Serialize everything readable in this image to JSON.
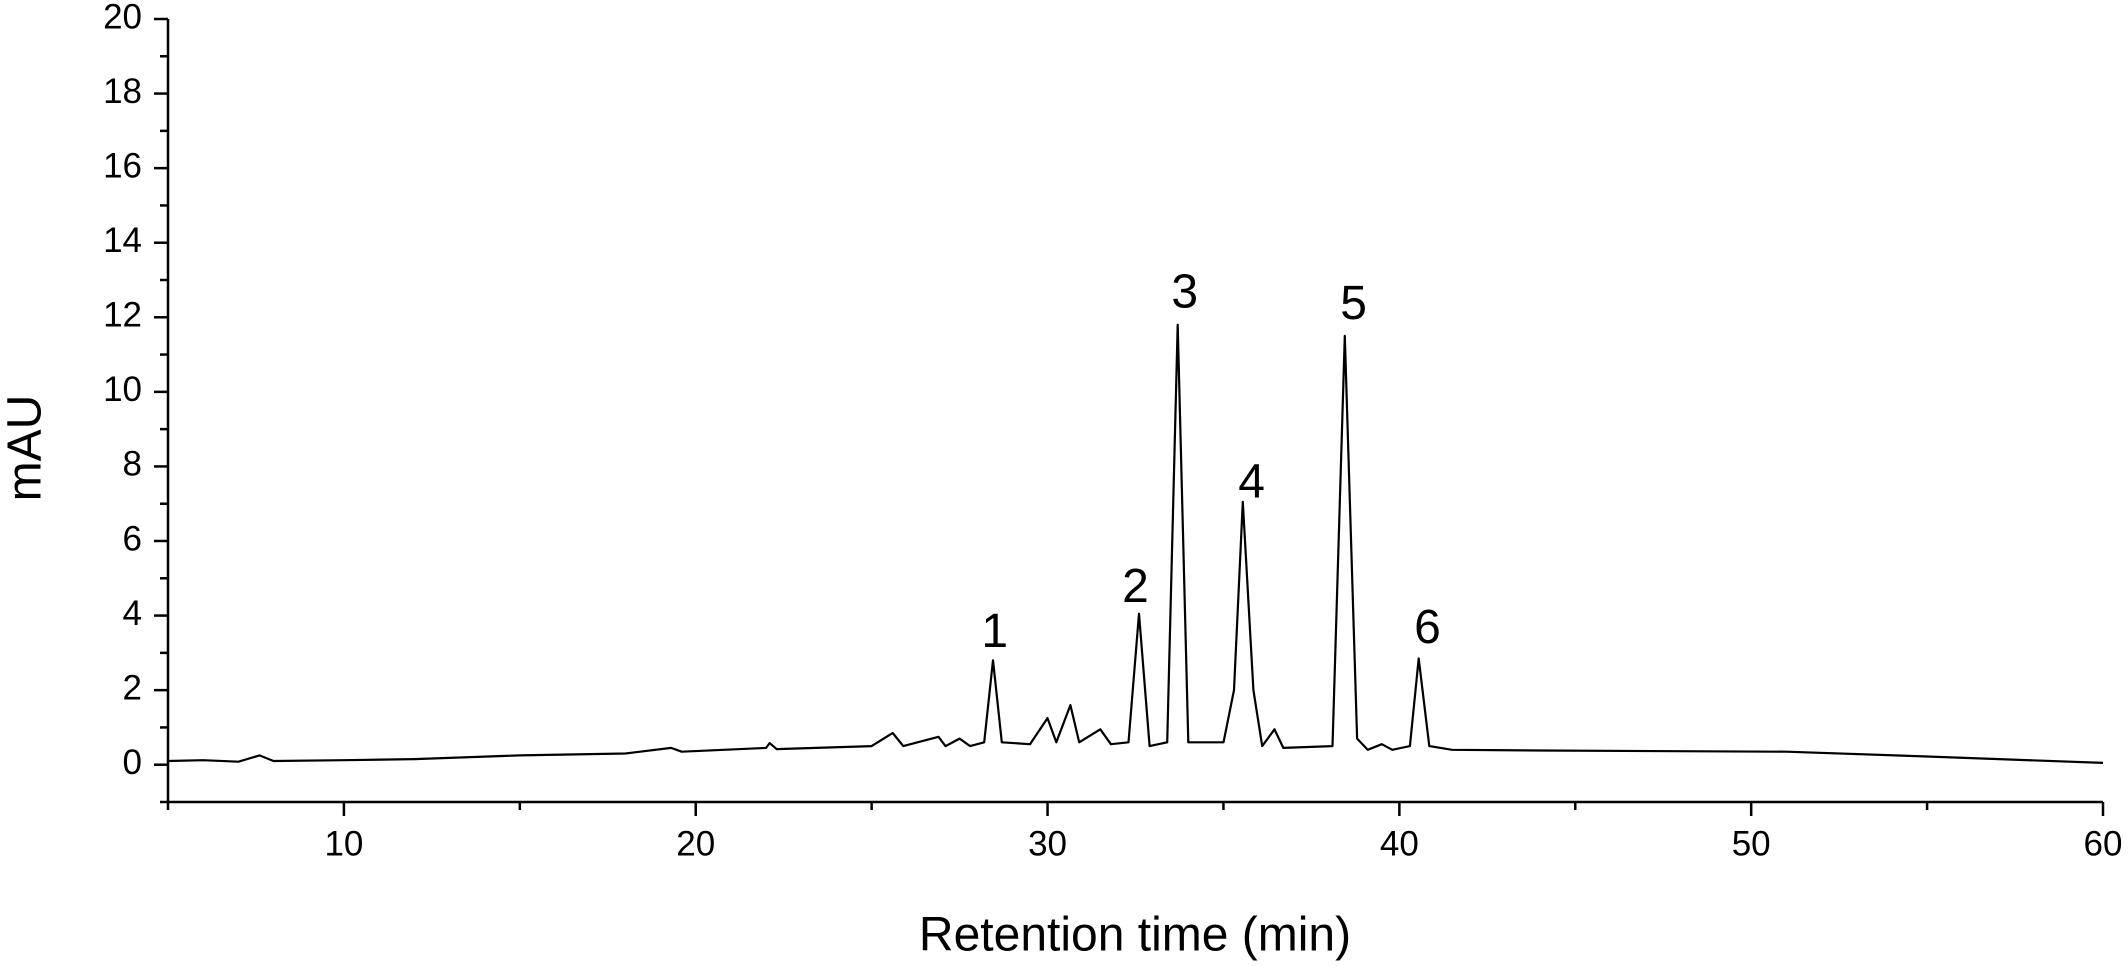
{
  "chart_data": {
    "type": "line",
    "x_label": "Retention time (min)",
    "y_label": "mAU",
    "xlim": [
      5,
      60
    ],
    "ylim": [
      -1,
      20
    ],
    "xticks": [
      10,
      20,
      30,
      40,
      50,
      60
    ],
    "xminorticks": [
      5,
      15,
      25,
      35,
      45,
      55
    ],
    "yticks": [
      0,
      2,
      4,
      6,
      8,
      10,
      12,
      14,
      16,
      18,
      20
    ],
    "yminorticks": [
      -1,
      1,
      3,
      5,
      7,
      9,
      11,
      13,
      15,
      17,
      19
    ],
    "series": [
      {
        "color": "#000000",
        "x": [
          5.0,
          6,
          7,
          7.6,
          8,
          10,
          12,
          15,
          18,
          19.3,
          19.6,
          22,
          22.1,
          22.3,
          25,
          25.6,
          25.9,
          26.9,
          27.1,
          27.5,
          27.8,
          28.2,
          28.45,
          28.7,
          29.5,
          30.0,
          30.25,
          30.65,
          30.9,
          31.5,
          31.8,
          32.3,
          32.6,
          32.9,
          33.4,
          33.7,
          34.0,
          35.0,
          35.3,
          35.55,
          35.85,
          36.1,
          36.45,
          36.7,
          38.1,
          38.45,
          38.8,
          39.1,
          39.5,
          39.8,
          40.3,
          40.55,
          40.85,
          41.5,
          44,
          51,
          55,
          60
        ],
        "values": [
          0.1,
          0.12,
          0.08,
          0.25,
          0.1,
          0.12,
          0.15,
          0.25,
          0.3,
          0.45,
          0.35,
          0.45,
          0.58,
          0.42,
          0.5,
          0.85,
          0.5,
          0.75,
          0.5,
          0.7,
          0.5,
          0.6,
          2.8,
          0.6,
          0.55,
          1.25,
          0.6,
          1.6,
          0.6,
          0.95,
          0.55,
          0.6,
          4.05,
          0.5,
          0.6,
          11.8,
          0.6,
          0.6,
          2.0,
          7.05,
          2.0,
          0.5,
          0.95,
          0.45,
          0.5,
          11.5,
          0.7,
          0.4,
          0.55,
          0.4,
          0.5,
          2.85,
          0.5,
          0.4,
          0.38,
          0.35,
          0.22,
          0.05
        ]
      }
    ],
    "annotations": [
      {
        "text": "1",
        "x": 28.5,
        "y": 3.5
      },
      {
        "text": "2",
        "x": 32.5,
        "y": 4.7
      },
      {
        "text": "3",
        "x": 33.9,
        "y": 12.6
      },
      {
        "text": "4",
        "x": 35.8,
        "y": 7.5
      },
      {
        "text": "5",
        "x": 38.7,
        "y": 12.3
      },
      {
        "text": "6",
        "x": 40.8,
        "y": 3.6
      }
    ]
  }
}
